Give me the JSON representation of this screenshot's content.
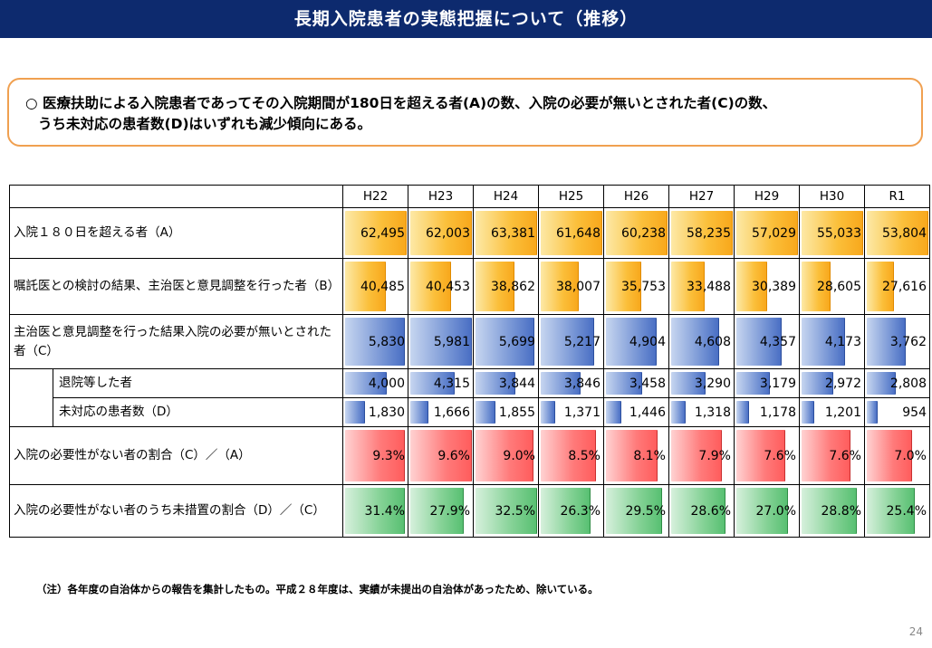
{
  "header": {
    "title": "長期入院患者の実態把握について（推移）"
  },
  "summary": {
    "bullet": "○",
    "line1": "医療扶助による入院患者であってその入院期間が180日を超える者(A)の数、入院の必要が無いとされた者(C)の数、",
    "line2": "うち未対応の患者数(D)はいずれも減少傾向にある。"
  },
  "table": {
    "years": [
      "H22",
      "H23",
      "H24",
      "H25",
      "H26",
      "H27",
      "H29",
      "H30",
      "R1"
    ],
    "rows": [
      {
        "label": "入院１８０日を超える者（A）",
        "values": [
          "62,495",
          "62,003",
          "63,381",
          "61,648",
          "60,238",
          "58,235",
          "57,029",
          "55,033",
          "53,804"
        ]
      },
      {
        "label": "嘱託医との検討の結果、主治医と意見調整を行った者（B）",
        "values": [
          "40,485",
          "40,453",
          "38,862",
          "38,007",
          "35,753",
          "33,488",
          "30,389",
          "28,605",
          "27,616"
        ]
      },
      {
        "label": "主治医と意見調整を行った結果入院の必要が無いとされた者（C）",
        "values": [
          "5,830",
          "5,981",
          "5,699",
          "5,217",
          "4,904",
          "4,608",
          "4,357",
          "4,173",
          "3,762"
        ]
      },
      {
        "label": "退院等した者",
        "values": [
          "4,000",
          "4,315",
          "3,844",
          "3,846",
          "3,458",
          "3,290",
          "3,179",
          "2,972",
          "2,808"
        ]
      },
      {
        "label": "未対応の患者数（D）",
        "values": [
          "1,830",
          "1,666",
          "1,855",
          "1,371",
          "1,446",
          "1,318",
          "1,178",
          "1,201",
          "954"
        ]
      },
      {
        "label": "入院の必要性がない者の割合（C）／（A）",
        "values": [
          "9.3%",
          "9.6%",
          "9.0%",
          "8.5%",
          "8.1%",
          "7.9%",
          "7.6%",
          "7.6%",
          "7.0%"
        ]
      },
      {
        "label": "入院の必要性がない者のうち未措置の割合（D）／（C）",
        "values": [
          "31.4%",
          "27.9%",
          "32.5%",
          "26.3%",
          "29.5%",
          "28.6%",
          "27.0%",
          "28.8%",
          "25.4%"
        ]
      }
    ],
    "bar_fill": [
      [
        1.0,
        1.0,
        1.0,
        1.0,
        1.0,
        1.0,
        1.0,
        1.0,
        1.0
      ],
      [
        0.65,
        0.65,
        0.62,
        0.61,
        0.57,
        0.54,
        0.49,
        0.46,
        0.44
      ],
      [
        0.97,
        1.0,
        0.95,
        0.87,
        0.82,
        0.77,
        0.73,
        0.7,
        0.63
      ],
      [
        0.67,
        0.72,
        0.64,
        0.64,
        0.58,
        0.55,
        0.53,
        0.5,
        0.47
      ],
      [
        0.31,
        0.28,
        0.31,
        0.23,
        0.24,
        0.22,
        0.2,
        0.2,
        0.16
      ],
      [
        0.97,
        1.0,
        0.94,
        0.89,
        0.84,
        0.82,
        0.79,
        0.79,
        0.73
      ],
      [
        0.97,
        0.86,
        1.0,
        0.81,
        0.91,
        0.88,
        0.83,
        0.89,
        0.78
      ]
    ],
    "colors": {
      "orange": "#f8a81c",
      "blue": "#4a6fc4",
      "red": "#ff5d5d",
      "green": "#58c072"
    }
  },
  "note": "（注）各年度の自治体からの報告を集計したもの。平成２８年度は、実績が未提出の自治体があったため、除いている。",
  "page_number": "24"
}
